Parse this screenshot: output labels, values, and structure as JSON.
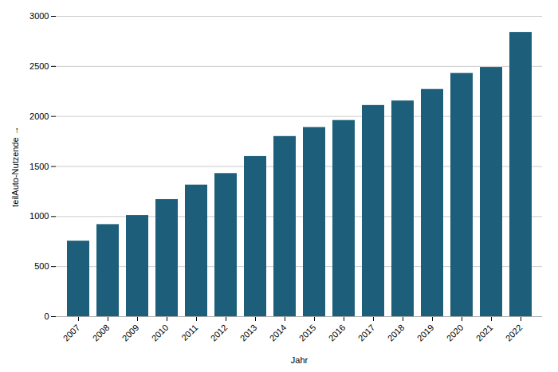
{
  "chart_data": {
    "type": "bar",
    "categories": [
      "2007",
      "2008",
      "2009",
      "2010",
      "2011",
      "2012",
      "2013",
      "2014",
      "2015",
      "2016",
      "2017",
      "2018",
      "2019",
      "2020",
      "2021",
      "2022"
    ],
    "values": [
      755,
      920,
      1010,
      1170,
      1315,
      1430,
      1600,
      1800,
      1890,
      1960,
      2110,
      2155,
      2270,
      2430,
      2490,
      2840
    ],
    "color": "#1d5f7a",
    "xlabel": "Jahr",
    "ylabel": "teilAuto-Nutzende",
    "ylim": [
      0,
      3000
    ],
    "yticks": [
      0,
      500,
      1000,
      1500,
      2000,
      2500,
      3000
    ],
    "grid": true
  }
}
